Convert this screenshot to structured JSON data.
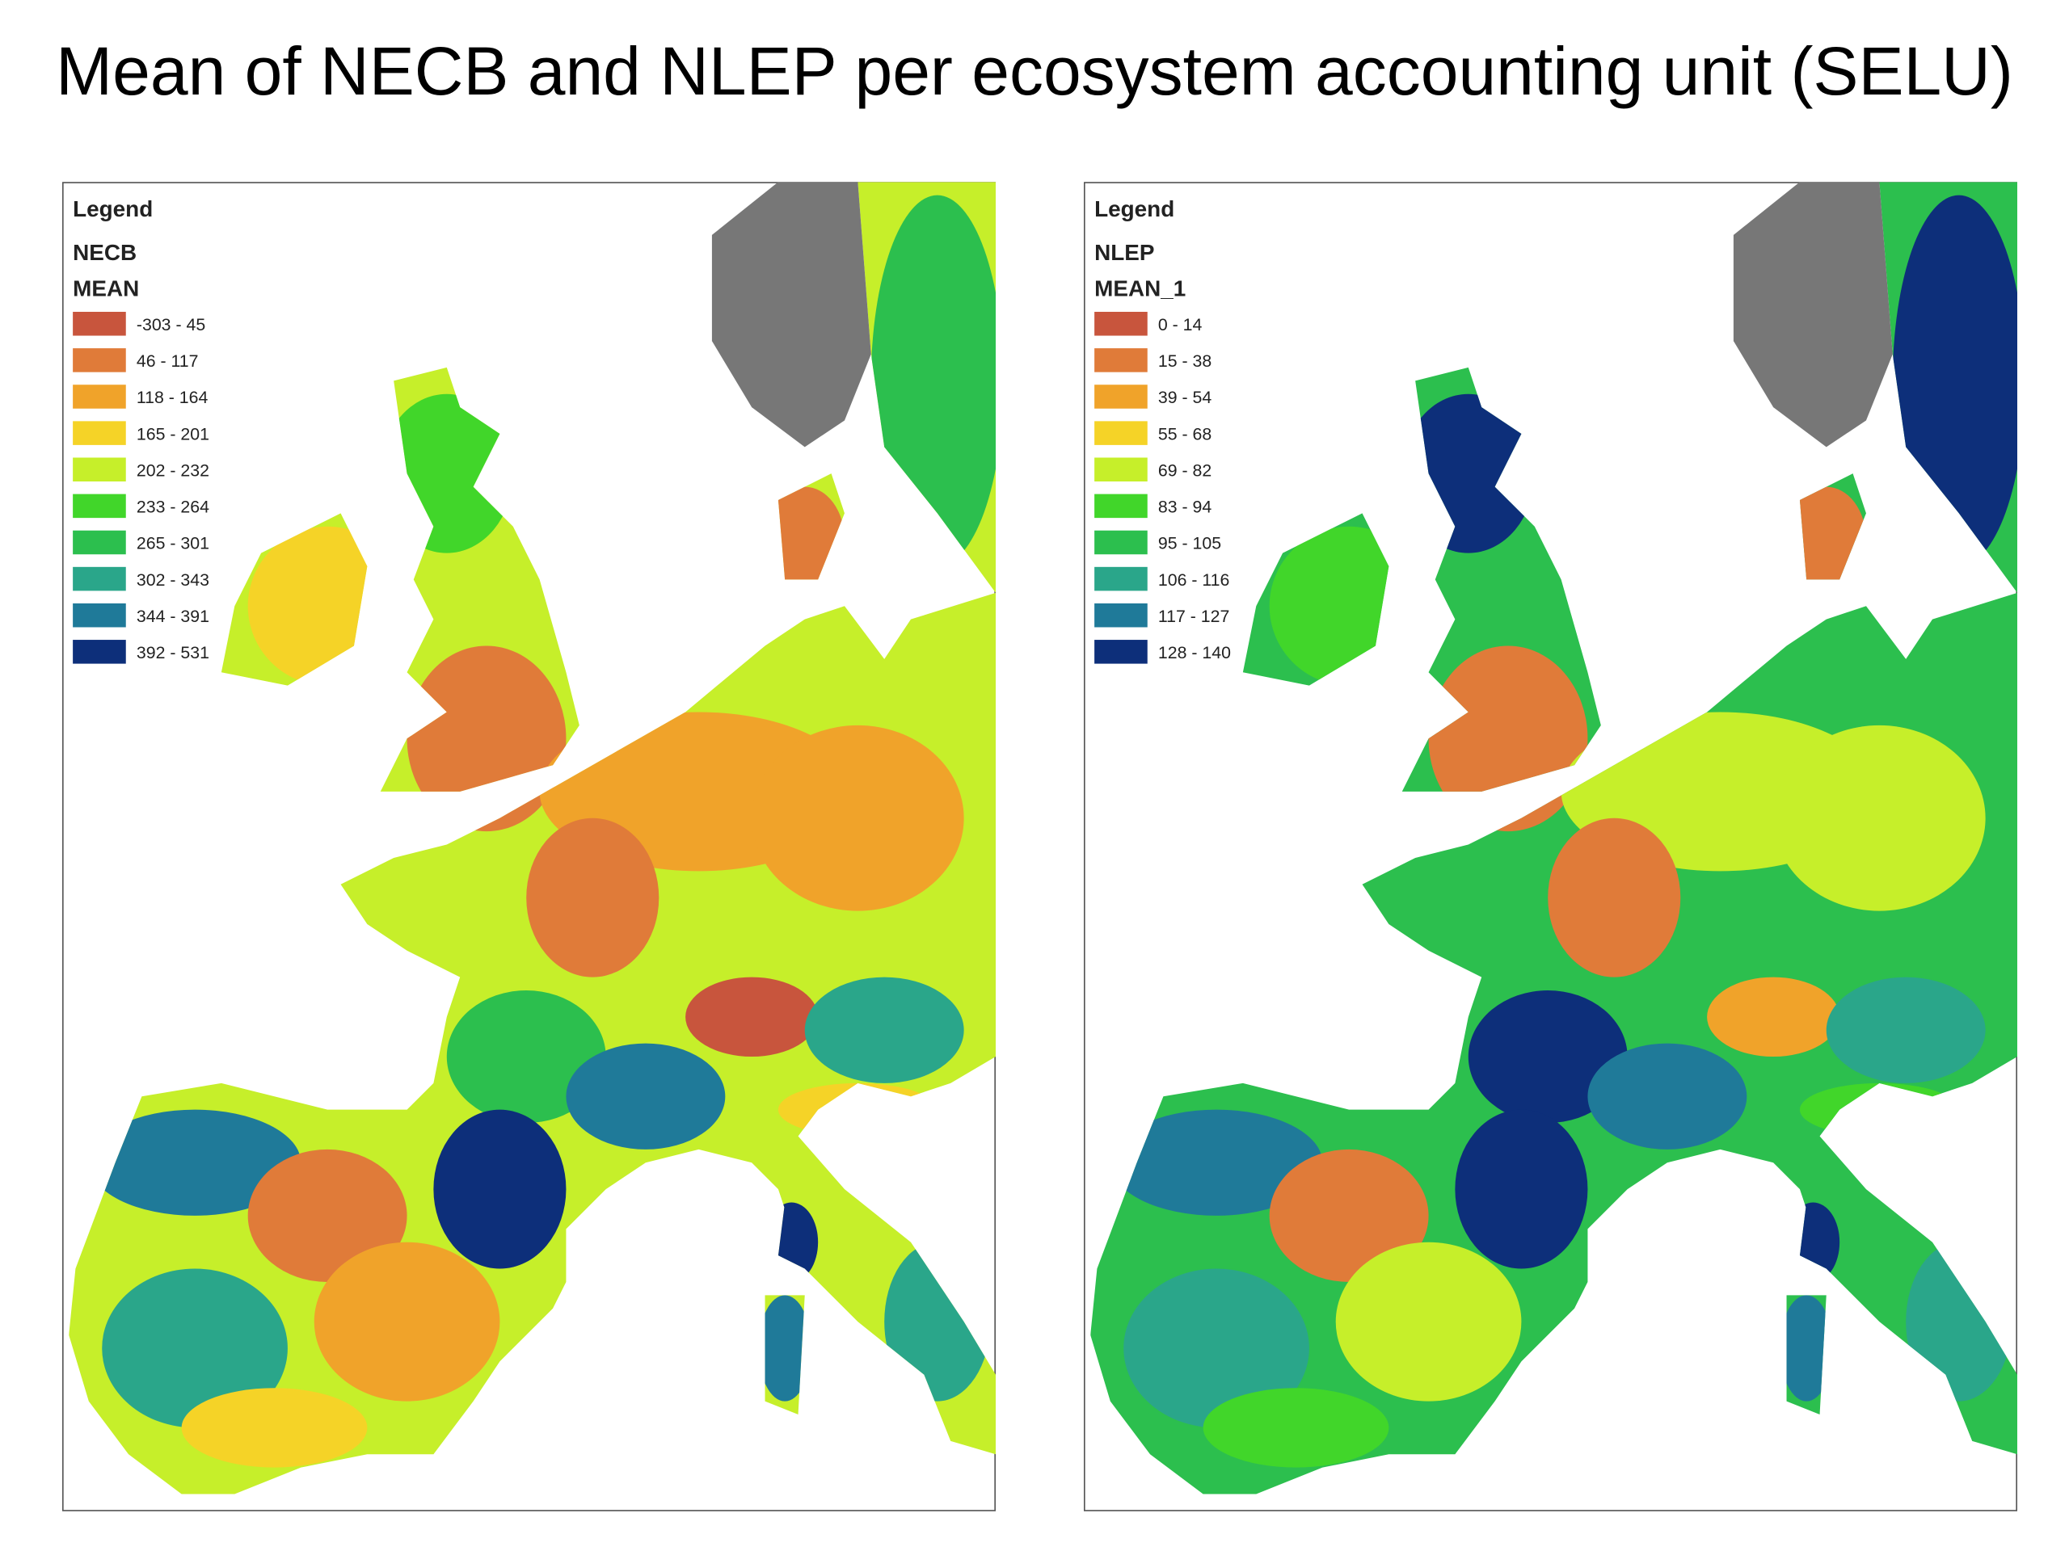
{
  "title": "Mean of NECB and NLEP per ecosystem accounting unit (SELU)",
  "maps": [
    {
      "legend": {
        "heading": "Legend",
        "layer": "NECB",
        "field": "MEAN",
        "classes": [
          {
            "label": "-303 - 45",
            "color": "#c8553d"
          },
          {
            "label": "46 - 117",
            "color": "#e07b39"
          },
          {
            "label": "118 - 164",
            "color": "#f0a32a"
          },
          {
            "label": "165 - 201",
            "color": "#f5d327"
          },
          {
            "label": "202 - 232",
            "color": "#c6ef2a"
          },
          {
            "label": "233 - 264",
            "color": "#41d62a"
          },
          {
            "label": "265 - 301",
            "color": "#2cbf4e"
          },
          {
            "label": "302 - 343",
            "color": "#2aa68a"
          },
          {
            "label": "344 - 391",
            "color": "#1f7a99"
          },
          {
            "label": "392 - 531",
            "color": "#0d2f7a"
          }
        ]
      }
    },
    {
      "legend": {
        "heading": "Legend",
        "layer": "NLEP",
        "field": "MEAN_1",
        "classes": [
          {
            "label": "0 - 14",
            "color": "#c8553d"
          },
          {
            "label": "15 - 38",
            "color": "#e07b39"
          },
          {
            "label": "39 - 54",
            "color": "#f0a32a"
          },
          {
            "label": "55 - 68",
            "color": "#f5d327"
          },
          {
            "label": "69 - 82",
            "color": "#c6ef2a"
          },
          {
            "label": "83 - 94",
            "color": "#41d62a"
          },
          {
            "label": "95 - 105",
            "color": "#2cbf4e"
          },
          {
            "label": "106 - 116",
            "color": "#2aa68a"
          },
          {
            "label": "117 - 127",
            "color": "#1f7a99"
          },
          {
            "label": "128 - 140",
            "color": "#0d2f7a"
          }
        ]
      }
    }
  ]
}
